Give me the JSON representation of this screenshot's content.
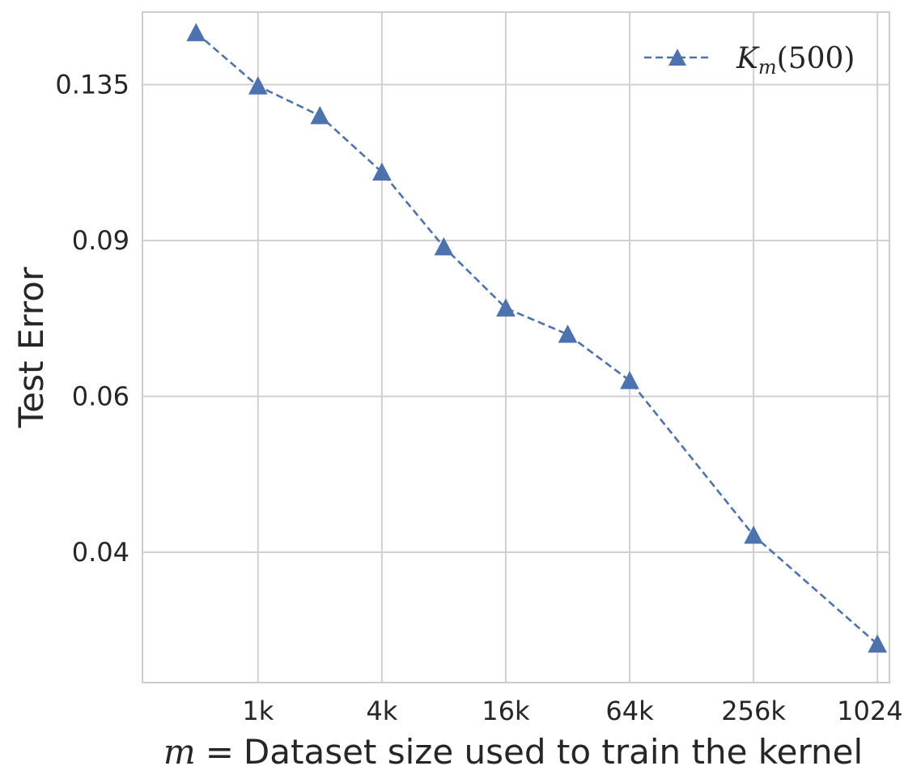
{
  "chart_data": {
    "type": "line",
    "title": "",
    "xlabel": {
      "variable": "m",
      "equals": "=",
      "text": "Dataset size used to train the kernel"
    },
    "ylabel": "Test Error",
    "x_scale": "log2",
    "y_scale": "log",
    "x": [
      500,
      1000,
      2000,
      4000,
      8000,
      16000,
      32000,
      64000,
      256000,
      1024000
    ],
    "xticks": [
      1000,
      4000,
      16000,
      64000,
      256000,
      1024000
    ],
    "xtick_labels": [
      "1k",
      "4k",
      "16k",
      "64k",
      "256k",
      "1024k"
    ],
    "yticks": [
      0.135,
      0.09,
      0.06,
      0.04
    ],
    "ytick_labels": [
      "0.135",
      "0.09",
      "0.06",
      "0.04"
    ],
    "ylim": [
      0.0285,
      0.163
    ],
    "xlim_log2": [
      8.1,
      20.16
    ],
    "grid": true,
    "legend_position": "top-right",
    "series": [
      {
        "name": "K_m(500)",
        "legend": {
          "base": "K",
          "subscript": "m",
          "arg": "(500)"
        },
        "values": [
          0.1545,
          0.1345,
          0.1245,
          0.1075,
          0.0885,
          0.0755,
          0.0705,
          0.0625,
          0.0418,
          0.0315
        ],
        "color": "#4c72b0",
        "line_style": "dashed",
        "marker": "triangle"
      }
    ]
  },
  "colors": {
    "grid": "#d0d0d0",
    "spine": "#cccccc",
    "series": "#4c72b0",
    "text": "#262626"
  }
}
